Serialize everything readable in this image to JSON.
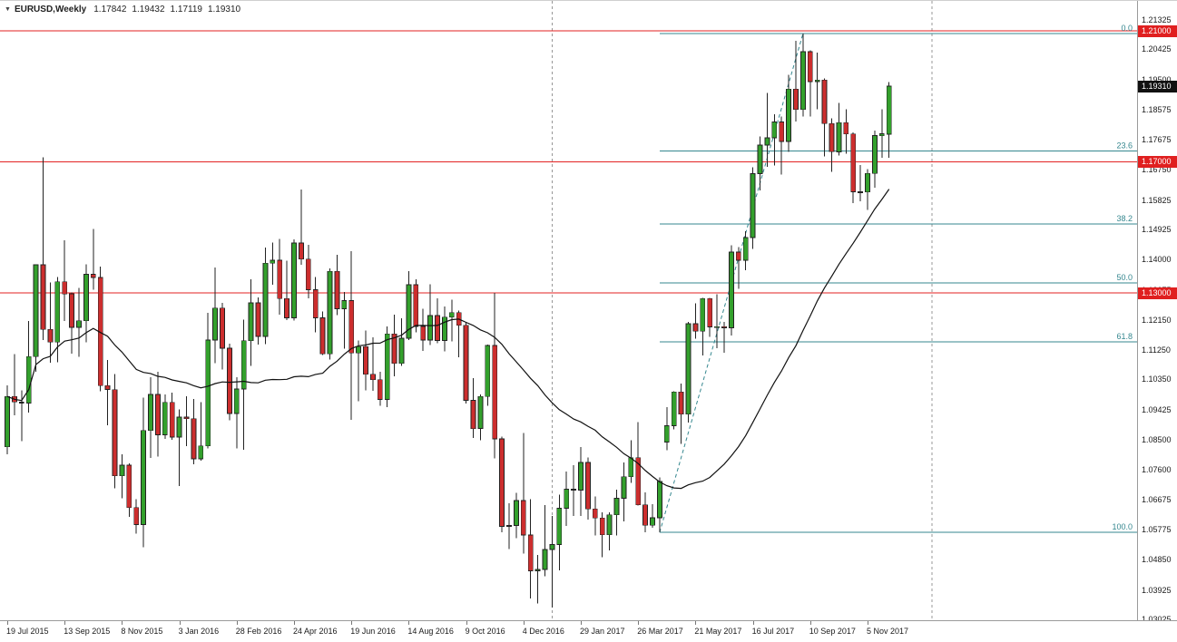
{
  "header": {
    "symbol_period": "EURUSD,Weekly",
    "open": "1.17842",
    "high": "1.19432",
    "low": "1.17119",
    "close": "1.19310"
  },
  "colors": {
    "bull_candle": "#33a02c",
    "bear_candle": "#cc2e2e",
    "candle_outline": "#222222",
    "ma_line": "#111111",
    "red_level_line": "#e32222",
    "red_badge_bg": "#e01f1f",
    "current_badge_bg": "#111111",
    "fibonacci": "#35878f",
    "separator": "#979797",
    "axis_text": "#1a1a1a"
  },
  "chart_data": {
    "type": "candlestick",
    "symbol": "EURUSD",
    "timeframe": "Weekly",
    "title": "EURUSD,Weekly",
    "last_bar": {
      "open": 1.17842,
      "high": 1.19432,
      "low": 1.17119,
      "close": 1.1931
    },
    "ylim": [
      1.03011,
      1.21913
    ],
    "grid": false,
    "y_ticks": [
      "1.21325",
      "1.20425",
      "1.19500",
      "1.18575",
      "1.17675",
      "1.16750",
      "1.15825",
      "1.14925",
      "1.14000",
      "1.13075",
      "1.12150",
      "1.11250",
      "1.10350",
      "1.09425",
      "1.08500",
      "1.07600",
      "1.06675",
      "1.05775",
      "1.04850",
      "1.03925",
      "1.03025"
    ],
    "x_ticks": [
      "19 Jul 2015",
      "13 Sep 2015",
      "8 Nov 2015",
      "3 Jan 2016",
      "28 Feb 2016",
      "24 Apr 2016",
      "19 Jun 2016",
      "14 Aug 2016",
      "9 Oct 2016",
      "4 Dec 2016",
      "29 Jan 2017",
      "26 Mar 2017",
      "21 May 2017",
      "16 Jul 2017",
      "10 Sep 2017",
      "5 Nov 2017"
    ],
    "x_tick_every": 8,
    "horizontal_lines": [
      {
        "price": 1.21,
        "label": "1.21000"
      },
      {
        "price": 1.17,
        "label": "1.17000"
      },
      {
        "price": 1.13,
        "label": "1.13000"
      }
    ],
    "current_price": {
      "price": 1.1931,
      "label": "1.19310"
    },
    "fibonacci": {
      "from_index": 91,
      "from_price": 1.0569,
      "to_index": 111,
      "to_price": 1.2092,
      "levels": [
        {
          "pct": "0.0",
          "price": 1.2092
        },
        {
          "pct": "23.6",
          "price": 1.17326
        },
        {
          "pct": "38.2",
          "price": 1.15102
        },
        {
          "pct": "50.0",
          "price": 1.13305
        },
        {
          "pct": "61.8",
          "price": 1.11508
        },
        {
          "pct": "100.0",
          "price": 1.0569
        }
      ]
    },
    "year_separators_index": [
      76,
      129
    ],
    "ma": {
      "type": "sma",
      "period": 30
    },
    "candles": [
      [
        1.083,
        1.1018,
        1.0808,
        1.0984
      ],
      [
        1.0984,
        1.1114,
        1.0927,
        1.0967
      ],
      [
        1.0967,
        1.1003,
        1.0848,
        1.0964
      ],
      [
        1.0964,
        1.1215,
        1.0935,
        1.1106
      ],
      [
        1.1106,
        1.1387,
        1.106,
        1.1386
      ],
      [
        1.1386,
        1.1714,
        1.1156,
        1.1189
      ],
      [
        1.1189,
        1.1332,
        1.1087,
        1.115
      ],
      [
        1.115,
        1.1348,
        1.1089,
        1.1334
      ],
      [
        1.1334,
        1.146,
        1.1214,
        1.1297
      ],
      [
        1.1297,
        1.1302,
        1.1115,
        1.1195
      ],
      [
        1.1195,
        1.1315,
        1.1105,
        1.1215
      ],
      [
        1.1215,
        1.1387,
        1.115,
        1.1357
      ],
      [
        1.1357,
        1.1495,
        1.131,
        1.1347
      ],
      [
        1.1347,
        1.138,
        1.1,
        1.1017
      ],
      [
        1.1017,
        1.1095,
        1.0896,
        1.1005
      ],
      [
        1.1005,
        1.1052,
        1.0704,
        1.0742
      ],
      [
        1.0742,
        1.0808,
        1.0674,
        1.0774
      ],
      [
        1.0774,
        1.078,
        1.0616,
        1.0645
      ],
      [
        1.0645,
        1.067,
        1.0566,
        1.0593
      ],
      [
        1.0593,
        1.0981,
        1.0524,
        1.088
      ],
      [
        1.088,
        1.1043,
        1.0796,
        1.099
      ],
      [
        1.099,
        1.106,
        1.08,
        1.0867
      ],
      [
        1.0867,
        1.099,
        1.0855,
        1.0966
      ],
      [
        1.0966,
        1.0996,
        1.0852,
        1.086
      ],
      [
        1.086,
        1.0945,
        1.0711,
        1.0921
      ],
      [
        1.0921,
        1.0985,
        1.0833,
        1.0916
      ],
      [
        1.0916,
        1.0977,
        1.0777,
        1.0794
      ],
      [
        1.0794,
        1.0967,
        1.0788,
        1.0833
      ],
      [
        1.0833,
        1.1239,
        1.0825,
        1.1156
      ],
      [
        1.1156,
        1.1377,
        1.1085,
        1.1254
      ],
      [
        1.1254,
        1.127,
        1.1067,
        1.1131
      ],
      [
        1.1131,
        1.1145,
        1.0912,
        1.0932
      ],
      [
        1.0932,
        1.1043,
        1.0826,
        1.1007
      ],
      [
        1.1007,
        1.1218,
        1.0822,
        1.1154
      ],
      [
        1.1154,
        1.1342,
        1.1077,
        1.127
      ],
      [
        1.127,
        1.1286,
        1.1143,
        1.1167
      ],
      [
        1.1167,
        1.1438,
        1.1144,
        1.1391
      ],
      [
        1.1391,
        1.1454,
        1.1325,
        1.14
      ],
      [
        1.14,
        1.1465,
        1.1234,
        1.1283
      ],
      [
        1.1283,
        1.1398,
        1.1217,
        1.1224
      ],
      [
        1.1224,
        1.1463,
        1.1216,
        1.1452
      ],
      [
        1.1452,
        1.1616,
        1.1386,
        1.1403
      ],
      [
        1.1403,
        1.1447,
        1.1283,
        1.131
      ],
      [
        1.131,
        1.1349,
        1.118,
        1.1224
      ],
      [
        1.1224,
        1.1243,
        1.1111,
        1.1114
      ],
      [
        1.1114,
        1.1375,
        1.1097,
        1.1366
      ],
      [
        1.1366,
        1.1416,
        1.1233,
        1.1252
      ],
      [
        1.1252,
        1.1303,
        1.113,
        1.1277
      ],
      [
        1.1277,
        1.1428,
        1.0913,
        1.1117
      ],
      [
        1.1117,
        1.1155,
        1.097,
        1.1136
      ],
      [
        1.1136,
        1.1186,
        1.1002,
        1.1052
      ],
      [
        1.1052,
        1.1165,
        1.1001,
        1.1035
      ],
      [
        1.1035,
        1.1059,
        1.0956,
        1.0975
      ],
      [
        1.0975,
        1.1198,
        1.0952,
        1.1175
      ],
      [
        1.1175,
        1.1234,
        1.1046,
        1.1085
      ],
      [
        1.1085,
        1.1222,
        1.1078,
        1.1162
      ],
      [
        1.1162,
        1.1366,
        1.1156,
        1.1325
      ],
      [
        1.1325,
        1.1342,
        1.118,
        1.1198
      ],
      [
        1.1198,
        1.1252,
        1.1123,
        1.1156
      ],
      [
        1.1156,
        1.1327,
        1.1141,
        1.1231
      ],
      [
        1.1231,
        1.1283,
        1.1147,
        1.1155
      ],
      [
        1.1155,
        1.1258,
        1.1122,
        1.1226
      ],
      [
        1.1226,
        1.128,
        1.1152,
        1.124
      ],
      [
        1.124,
        1.1246,
        1.1104,
        1.1201
      ],
      [
        1.1201,
        1.1211,
        1.0962,
        1.0972
      ],
      [
        1.0972,
        1.104,
        1.0858,
        1.0886
      ],
      [
        1.0886,
        1.099,
        1.085,
        1.0984
      ],
      [
        1.0984,
        1.1143,
        1.0955,
        1.114
      ],
      [
        1.114,
        1.13,
        1.0795,
        1.0855
      ],
      [
        1.0855,
        1.0862,
        1.0569,
        1.0588
      ],
      [
        1.0588,
        1.0658,
        1.0518,
        1.059
      ],
      [
        1.059,
        1.069,
        1.0551,
        1.0666
      ],
      [
        1.0666,
        1.0873,
        1.0505,
        1.0561
      ],
      [
        1.0561,
        1.067,
        1.0367,
        1.0452
      ],
      [
        1.0452,
        1.05,
        1.0352,
        1.0456
      ],
      [
        1.0456,
        1.0653,
        1.0436,
        1.0517
      ],
      [
        1.0517,
        1.062,
        1.034,
        1.0532
      ],
      [
        1.0532,
        1.0685,
        1.0454,
        1.0643
      ],
      [
        1.0643,
        1.0755,
        1.0589,
        1.0701
      ],
      [
        1.0701,
        1.0775,
        1.062,
        1.0698
      ],
      [
        1.0698,
        1.0829,
        1.0619,
        1.0783
      ],
      [
        1.0783,
        1.0798,
        1.0608,
        1.0641
      ],
      [
        1.0641,
        1.0679,
        1.056,
        1.0613
      ],
      [
        1.0613,
        1.0631,
        1.0494,
        1.0562
      ],
      [
        1.0562,
        1.0631,
        1.0514,
        1.0623
      ],
      [
        1.0623,
        1.0699,
        1.056,
        1.0673
      ],
      [
        1.0673,
        1.0783,
        1.0603,
        1.0739
      ],
      [
        1.0739,
        1.085,
        1.0721,
        1.0797
      ],
      [
        1.0797,
        1.0906,
        1.0651,
        1.0653
      ],
      [
        1.0653,
        1.0692,
        1.057,
        1.0591
      ],
      [
        1.0591,
        1.0655,
        1.0583,
        1.0614
      ],
      [
        1.0614,
        1.0737,
        1.0569,
        1.0725
      ],
      [
        1.0845,
        1.0951,
        1.082,
        1.0895
      ],
      [
        1.0895,
        1.1,
        1.0884,
        1.0998
      ],
      [
        1.0998,
        1.1024,
        1.0839,
        1.093
      ],
      [
        1.093,
        1.1212,
        1.0905,
        1.1206
      ],
      [
        1.1206,
        1.1268,
        1.1161,
        1.1183
      ],
      [
        1.1183,
        1.1285,
        1.1109,
        1.1283
      ],
      [
        1.1283,
        1.1285,
        1.1166,
        1.1196
      ],
      [
        1.1196,
        1.1296,
        1.1132,
        1.1197
      ],
      [
        1.1197,
        1.1212,
        1.1118,
        1.1194
      ],
      [
        1.1194,
        1.1445,
        1.117,
        1.1425
      ],
      [
        1.1425,
        1.144,
        1.1313,
        1.14
      ],
      [
        1.14,
        1.1489,
        1.137,
        1.1469
      ],
      [
        1.1469,
        1.1684,
        1.1434,
        1.1664
      ],
      [
        1.1664,
        1.1777,
        1.1613,
        1.1751
      ],
      [
        1.1751,
        1.191,
        1.1685,
        1.1773
      ],
      [
        1.1773,
        1.1846,
        1.1689,
        1.1822
      ],
      [
        1.1822,
        1.1838,
        1.1662,
        1.1762
      ],
      [
        1.1762,
        1.1966,
        1.173,
        1.1922
      ],
      [
        1.1922,
        1.207,
        1.1823,
        1.186
      ],
      [
        1.186,
        1.2092,
        1.1838,
        1.2036
      ],
      [
        1.2036,
        1.204,
        1.1838,
        1.1945
      ],
      [
        1.1945,
        1.2033,
        1.1861,
        1.195
      ],
      [
        1.195,
        1.1955,
        1.1717,
        1.1817
      ],
      [
        1.1817,
        1.1833,
        1.167,
        1.1731
      ],
      [
        1.1731,
        1.188,
        1.1719,
        1.182
      ],
      [
        1.182,
        1.186,
        1.1725,
        1.1785
      ],
      [
        1.1785,
        1.179,
        1.1574,
        1.1609
      ],
      [
        1.1609,
        1.169,
        1.158,
        1.1608
      ],
      [
        1.1608,
        1.1678,
        1.1553,
        1.1665
      ],
      [
        1.1665,
        1.1795,
        1.1621,
        1.178
      ],
      [
        1.178,
        1.186,
        1.1713,
        1.1786
      ],
      [
        1.17842,
        1.19432,
        1.17119,
        1.1931
      ]
    ]
  }
}
